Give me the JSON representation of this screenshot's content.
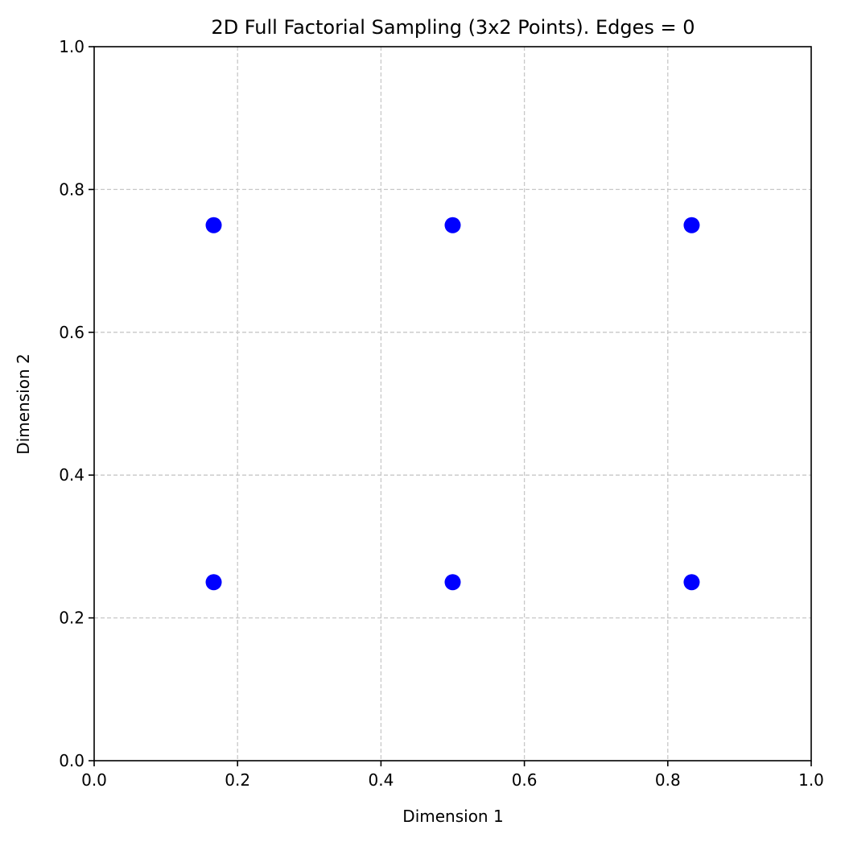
{
  "chart_data": {
    "type": "scatter",
    "title": "2D Full Factorial Sampling (3x2 Points). Edges = 0",
    "xlabel": "Dimension 1",
    "ylabel": "Dimension 2",
    "xlim": [
      0.0,
      1.0
    ],
    "ylim": [
      0.0,
      1.0
    ],
    "xticks": [
      0.0,
      0.2,
      0.4,
      0.6,
      0.8,
      1.0
    ],
    "yticks": [
      0.0,
      0.2,
      0.4,
      0.6,
      0.8,
      1.0
    ],
    "xtick_labels": [
      "0.0",
      "0.2",
      "0.4",
      "0.6",
      "0.8",
      "1.0"
    ],
    "ytick_labels": [
      "0.0",
      "0.2",
      "0.4",
      "0.6",
      "0.8",
      "1.0"
    ],
    "grid": true,
    "grid_style": "dashed",
    "point_color": "#0000ff",
    "grid_color": "#c8c8c8",
    "series": [
      {
        "x": [
          0.1667,
          0.5,
          0.8333,
          0.1667,
          0.5,
          0.8333
        ],
        "y": [
          0.25,
          0.25,
          0.25,
          0.75,
          0.75,
          0.75
        ]
      }
    ]
  }
}
